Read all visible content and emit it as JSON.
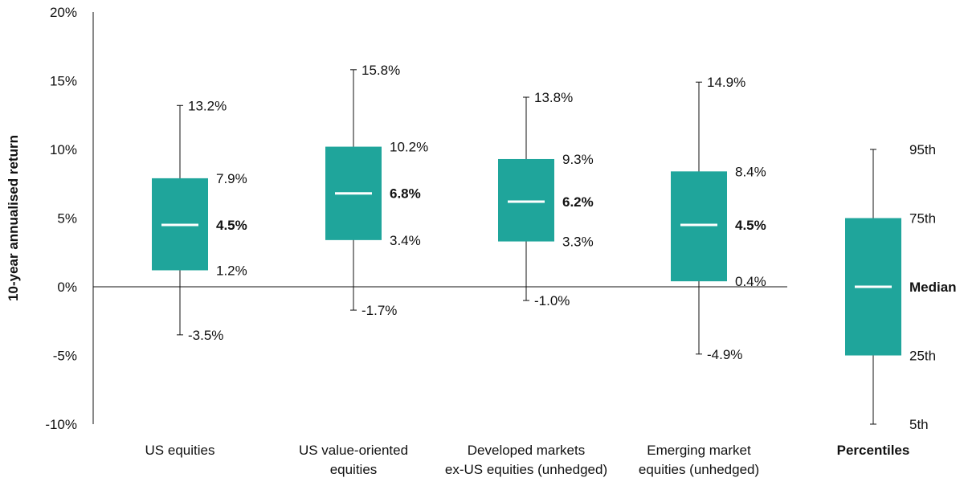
{
  "chart_data": {
    "type": "boxplot",
    "ylabel": "10-year annualised return",
    "ylim": [
      -10,
      20
    ],
    "yticks": [
      -10,
      -5,
      0,
      5,
      10,
      15,
      20
    ],
    "ytick_labels": [
      "-10%",
      "-5%",
      "0%",
      "5%",
      "10%",
      "15%",
      "20%"
    ],
    "grid": false,
    "color": "#1fa59b",
    "median_color": "#ffffff",
    "categories": [
      {
        "label": [
          "US equities"
        ],
        "p5": -3.5,
        "p25": 1.2,
        "median": 4.5,
        "p75": 7.9,
        "p95": 13.2,
        "labels": {
          "p5": "-3.5%",
          "p25": "1.2%",
          "median": "4.5%",
          "p75": "7.9%",
          "p95": "13.2%"
        }
      },
      {
        "label": [
          "US value-oriented",
          "equities"
        ],
        "p5": -1.7,
        "p25": 3.4,
        "median": 6.8,
        "p75": 10.2,
        "p95": 15.8,
        "labels": {
          "p5": "-1.7%",
          "p25": "3.4%",
          "median": "6.8%",
          "p75": "10.2%",
          "p95": "15.8%"
        }
      },
      {
        "label": [
          "Developed markets",
          "ex-US equities (unhedged)"
        ],
        "p5": -1.0,
        "p25": 3.3,
        "median": 6.2,
        "p75": 9.3,
        "p95": 13.8,
        "labels": {
          "p5": "-1.0%",
          "p25": "3.3%",
          "median": "6.2%",
          "p75": "9.3%",
          "p95": "13.8%"
        }
      },
      {
        "label": [
          "Emerging market",
          "equities (unhedged)"
        ],
        "p5": -4.9,
        "p25": 0.4,
        "median": 4.5,
        "p75": 8.4,
        "p95": 14.9,
        "labels": {
          "p5": "-4.9%",
          "p25": "0.4%",
          "median": "4.5%",
          "p75": "8.4%",
          "p95": "14.9%"
        }
      }
    ],
    "legend": {
      "title": "Percentiles",
      "labels": {
        "p5": "5th",
        "p25": "25th",
        "median": "Median",
        "p75": "75th",
        "p95": "95th"
      }
    }
  }
}
